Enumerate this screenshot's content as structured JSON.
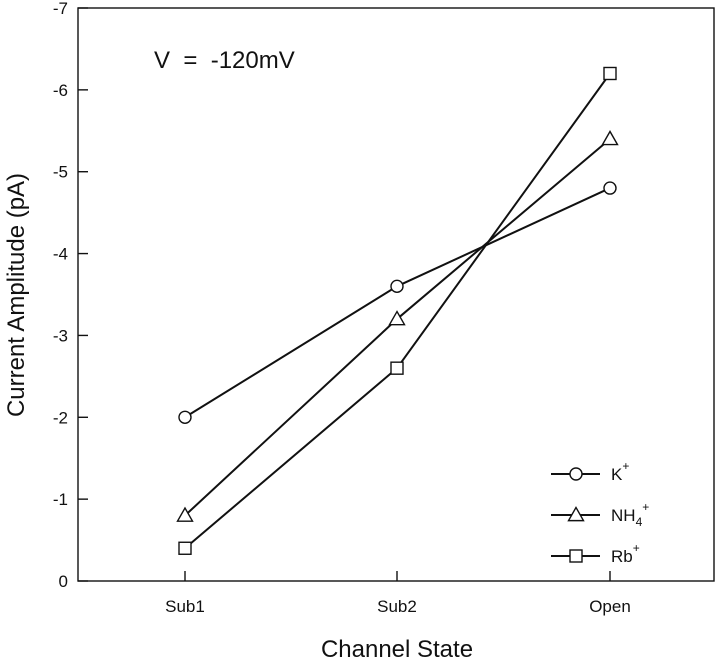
{
  "chart_data": {
    "type": "line",
    "xlabel": "Channel State",
    "ylabel": "Current Amplitude (pA)",
    "categories": [
      "Sub1",
      "Sub2",
      "Open"
    ],
    "ylim": [
      0,
      -7
    ],
    "yticks": [
      "0",
      "-1",
      "-2",
      "-3",
      "-4",
      "-5",
      "-6",
      "-7"
    ],
    "annotation": "V  =  -120mV",
    "legend_position": "bottom-right",
    "grid": false,
    "series": [
      {
        "name_base": "K",
        "name_sup": "+",
        "name_sub": "",
        "marker": "circle",
        "values": [
          -2.0,
          -3.6,
          -4.8
        ]
      },
      {
        "name_base": "NH",
        "name_sub": "4",
        "name_sup": "+",
        "marker": "triangle",
        "values": [
          -0.8,
          -3.2,
          -5.4
        ]
      },
      {
        "name_base": "Rb",
        "name_sup": "+",
        "name_sub": "",
        "marker": "square",
        "values": [
          -0.4,
          -2.6,
          -6.2
        ]
      }
    ]
  }
}
